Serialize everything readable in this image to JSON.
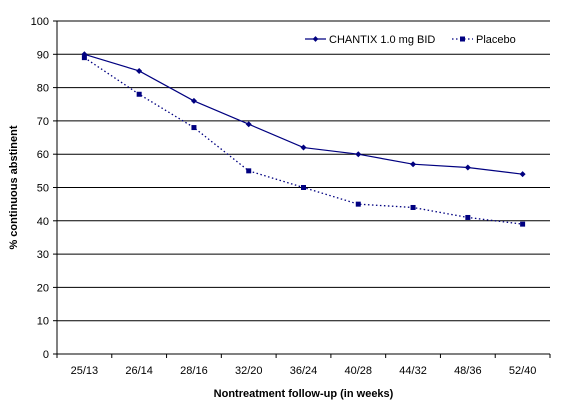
{
  "chart_data": {
    "type": "line",
    "title": "",
    "xlabel": "Nontreatment follow-up (in weeks)",
    "ylabel": "% continuous abstinent",
    "categories": [
      "25/13",
      "26/14",
      "28/16",
      "32/20",
      "36/24",
      "40/28",
      "44/32",
      "48/36",
      "52/40"
    ],
    "ylim": [
      0,
      100
    ],
    "yticks": [
      0,
      10,
      20,
      30,
      40,
      50,
      60,
      70,
      80,
      90,
      100
    ],
    "grid": true,
    "legend_position": "top-right",
    "series": [
      {
        "name": "CHANTIX 1.0 mg BID",
        "values": [
          90,
          85,
          76,
          69,
          62,
          60,
          57,
          56,
          54
        ],
        "color": "#000080",
        "line_style": "solid",
        "marker": "diamond"
      },
      {
        "name": "Placebo",
        "values": [
          89,
          78,
          68,
          55,
          50,
          45,
          44,
          41,
          39
        ],
        "color": "#000080",
        "line_style": "dotted",
        "marker": "square"
      }
    ]
  }
}
